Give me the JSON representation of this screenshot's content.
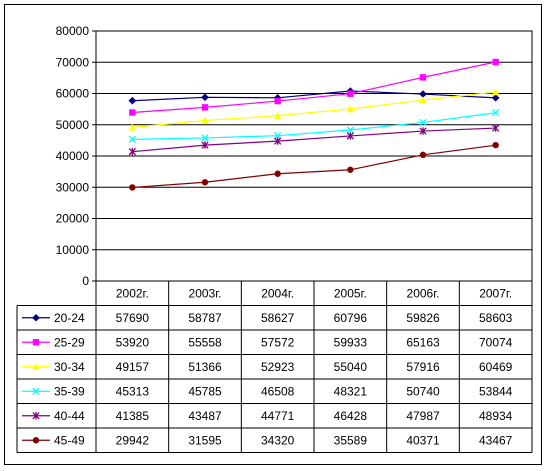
{
  "chart_data": {
    "type": "line",
    "title": "",
    "xlabel": "",
    "ylabel": "",
    "ylim": [
      0,
      80000
    ],
    "yticks": [
      "0",
      "10000",
      "20000",
      "30000",
      "40000",
      "50000",
      "60000",
      "70000",
      "80000"
    ],
    "categories": [
      "2002г.",
      "2003г.",
      "2004г.",
      "2005г.",
      "2006г.",
      "2007г."
    ],
    "grid": "horizontal",
    "legend": "data-table",
    "series": [
      {
        "name": "20-24",
        "color": "#000080",
        "marker": "diamond",
        "values": [
          57690,
          58787,
          58627,
          60796,
          59826,
          58603
        ]
      },
      {
        "name": "25-29",
        "color": "#ff00ff",
        "marker": "square",
        "values": [
          53920,
          55558,
          57572,
          59933,
          65163,
          70074
        ]
      },
      {
        "name": "30-34",
        "color": "#ffff00",
        "marker": "triangle",
        "values": [
          49157,
          51366,
          52923,
          55040,
          57916,
          60469
        ]
      },
      {
        "name": "35-39",
        "color": "#00ffff",
        "marker": "x",
        "values": [
          45313,
          45785,
          46508,
          48321,
          50740,
          53844
        ]
      },
      {
        "name": "40-44",
        "color": "#800080",
        "marker": "star",
        "values": [
          41385,
          43487,
          44771,
          46428,
          47987,
          48934
        ]
      },
      {
        "name": "45-49",
        "color": "#800000",
        "marker": "circle",
        "values": [
          29942,
          31595,
          34320,
          35589,
          40371,
          43467
        ]
      }
    ]
  }
}
